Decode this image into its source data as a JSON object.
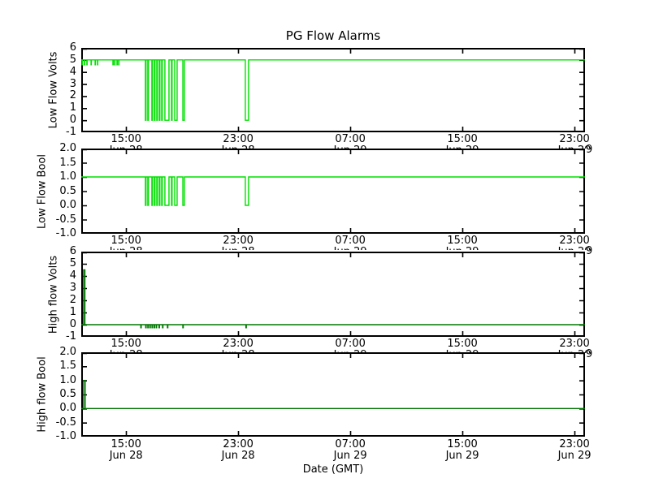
{
  "chart_data": {
    "type": "line",
    "title": "PG Flow Alarms",
    "xlabel": "Date (GMT)",
    "x_range_hours": [
      11.8,
      47.75
    ],
    "x_ticks": [
      {
        "t": 15,
        "time": "15:00",
        "date": "Jun 28"
      },
      {
        "t": 23,
        "time": "23:00",
        "date": "Jun 28"
      },
      {
        "t": 31,
        "time": "07:00",
        "date": "Jun 29"
      },
      {
        "t": 39,
        "time": "15:00",
        "date": "Jun 29"
      },
      {
        "t": 47,
        "time": "23:00",
        "date": "Jun 29"
      }
    ],
    "colors": {
      "bright_green": "#00e000",
      "dark_green": "#007700",
      "axis": "#000000"
    },
    "subplots": [
      {
        "ylabel": "Low Flow Volts",
        "ylim": [
          -1,
          6
        ],
        "yticks": [
          {
            "v": 6,
            "label": "6"
          },
          {
            "v": 5,
            "label": "5"
          },
          {
            "v": 4,
            "label": "4"
          },
          {
            "v": 3,
            "label": "3"
          },
          {
            "v": 2,
            "label": "2"
          },
          {
            "v": 1,
            "label": "1"
          },
          {
            "v": 0,
            "label": "0"
          },
          {
            "v": -1,
            "label": "-1"
          }
        ],
        "color": "#00e000",
        "series_step": [
          [
            11.8,
            5
          ],
          [
            11.86,
            4.6
          ],
          [
            11.88,
            5
          ],
          [
            12.03,
            4.6
          ],
          [
            12.05,
            5
          ],
          [
            12.2,
            4.6
          ],
          [
            12.22,
            5
          ],
          [
            12.5,
            4.6
          ],
          [
            12.52,
            5
          ],
          [
            12.79,
            4.6
          ],
          [
            12.81,
            5
          ],
          [
            12.96,
            4.6
          ],
          [
            12.98,
            5
          ],
          [
            14.06,
            4.6
          ],
          [
            14.08,
            5
          ],
          [
            14.18,
            4.6
          ],
          [
            14.2,
            5
          ],
          [
            14.35,
            4.6
          ],
          [
            14.37,
            5
          ],
          [
            14.47,
            4.6
          ],
          [
            14.49,
            5
          ],
          [
            16.38,
            0
          ],
          [
            16.42,
            5
          ],
          [
            16.55,
            0
          ],
          [
            16.59,
            5
          ],
          [
            16.84,
            0
          ],
          [
            16.88,
            5
          ],
          [
            17.02,
            0
          ],
          [
            17.06,
            5
          ],
          [
            17.19,
            0
          ],
          [
            17.23,
            5
          ],
          [
            17.37,
            0
          ],
          [
            17.41,
            5
          ],
          [
            17.54,
            0
          ],
          [
            17.58,
            5
          ],
          [
            17.77,
            0
          ],
          [
            18.06,
            5
          ],
          [
            18.24,
            0
          ],
          [
            18.28,
            5
          ],
          [
            18.47,
            0
          ],
          [
            18.64,
            5
          ],
          [
            19.05,
            0
          ],
          [
            19.16,
            5
          ],
          [
            23.51,
            0
          ],
          [
            23.74,
            5
          ],
          [
            47.75,
            5
          ]
        ]
      },
      {
        "ylabel": "Low Flow Bool",
        "ylim": [
          -1,
          2
        ],
        "yticks": [
          {
            "v": 2,
            "label": "2.0"
          },
          {
            "v": 1.5,
            "label": "1.5"
          },
          {
            "v": 1,
            "label": "1.0"
          },
          {
            "v": 0.5,
            "label": "0.5"
          },
          {
            "v": 0,
            "label": "0.0"
          },
          {
            "v": -0.5,
            "label": "-0.5"
          },
          {
            "v": -1,
            "label": "-1.0"
          }
        ],
        "color": "#00e000",
        "series_step": [
          [
            11.8,
            1
          ],
          [
            16.38,
            0
          ],
          [
            16.42,
            1
          ],
          [
            16.55,
            0
          ],
          [
            16.59,
            1
          ],
          [
            16.84,
            0
          ],
          [
            16.88,
            1
          ],
          [
            17.02,
            0
          ],
          [
            17.06,
            1
          ],
          [
            17.19,
            0
          ],
          [
            17.23,
            1
          ],
          [
            17.37,
            0
          ],
          [
            17.41,
            1
          ],
          [
            17.54,
            0
          ],
          [
            17.58,
            1
          ],
          [
            17.77,
            0
          ],
          [
            18.06,
            1
          ],
          [
            18.24,
            0
          ],
          [
            18.28,
            1
          ],
          [
            18.47,
            0
          ],
          [
            18.64,
            1
          ],
          [
            19.05,
            0
          ],
          [
            19.16,
            1
          ],
          [
            23.51,
            0
          ],
          [
            23.74,
            1
          ],
          [
            47.75,
            1
          ]
        ]
      },
      {
        "ylabel": "High flow Volts",
        "ylim": [
          -1,
          6
        ],
        "yticks": [
          {
            "v": 6,
            "label": "6"
          },
          {
            "v": 5,
            "label": "5"
          },
          {
            "v": 4,
            "label": "4"
          },
          {
            "v": 3,
            "label": "3"
          },
          {
            "v": 2,
            "label": "2"
          },
          {
            "v": 1,
            "label": "1"
          },
          {
            "v": 0,
            "label": "0"
          },
          {
            "v": -1,
            "label": "-1"
          }
        ],
        "color": "#007700",
        "series_step": [
          [
            11.8,
            0
          ],
          [
            11.97,
            4.5
          ],
          [
            12.06,
            0
          ],
          [
            16.05,
            -0.25
          ],
          [
            16.08,
            0
          ],
          [
            16.4,
            -0.25
          ],
          [
            16.43,
            0
          ],
          [
            16.55,
            -0.25
          ],
          [
            16.58,
            0
          ],
          [
            16.7,
            -0.25
          ],
          [
            16.73,
            0
          ],
          [
            16.85,
            -0.25
          ],
          [
            16.88,
            0
          ],
          [
            17.0,
            -0.25
          ],
          [
            17.03,
            0
          ],
          [
            17.15,
            -0.25
          ],
          [
            17.18,
            0
          ],
          [
            17.35,
            -0.25
          ],
          [
            17.38,
            0
          ],
          [
            17.6,
            -0.25
          ],
          [
            17.63,
            0
          ],
          [
            17.95,
            -0.25
          ],
          [
            17.98,
            0
          ],
          [
            19.05,
            -0.25
          ],
          [
            19.08,
            0
          ],
          [
            23.55,
            -0.25
          ],
          [
            23.58,
            0
          ],
          [
            47.75,
            0
          ]
        ]
      },
      {
        "ylabel": "High flow Bool",
        "ylim": [
          -1,
          2
        ],
        "yticks": [
          {
            "v": 2,
            "label": "2.0"
          },
          {
            "v": 1.5,
            "label": "1.5"
          },
          {
            "v": 1,
            "label": "1.0"
          },
          {
            "v": 0.5,
            "label": "0.5"
          },
          {
            "v": 0,
            "label": "0.0"
          },
          {
            "v": -0.5,
            "label": "-0.5"
          },
          {
            "v": -1,
            "label": "-1.0"
          }
        ],
        "color": "#007700",
        "series_step": [
          [
            11.8,
            0
          ],
          [
            11.97,
            1
          ],
          [
            12.08,
            0
          ],
          [
            47.75,
            0
          ]
        ]
      }
    ]
  }
}
